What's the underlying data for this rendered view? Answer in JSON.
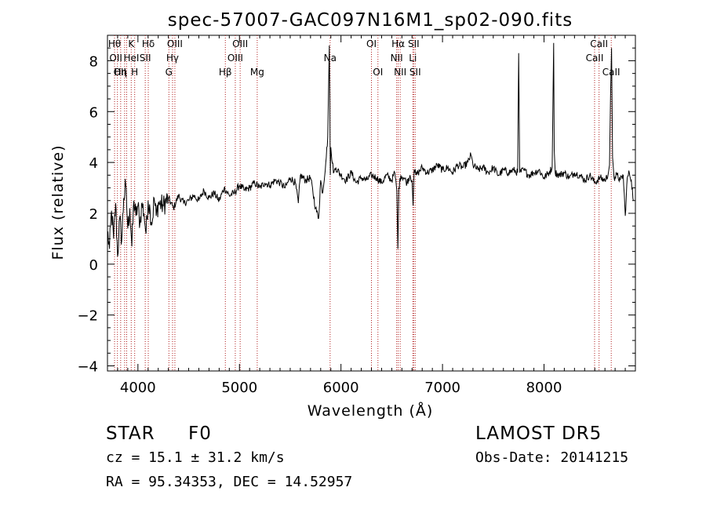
{
  "chart_data": {
    "type": "line",
    "title": "spec-57007-GAC097N16M1_sp02-090.fits",
    "xlabel": "Wavelength (Å)",
    "ylabel": "Flux (relative)",
    "xlim": [
      3700,
      8900
    ],
    "ylim": [
      -4.2,
      9.0
    ],
    "xticks": [
      4000,
      5000,
      6000,
      7000,
      8000
    ],
    "yticks": [
      -4,
      -2,
      0,
      2,
      4,
      6,
      8
    ],
    "grid": false,
    "series": [
      {
        "x": [
          3700,
          3720,
          3740,
          3760,
          3780,
          3800,
          3820,
          3840,
          3860,
          3880,
          3900,
          3920,
          3940,
          3960,
          3980,
          4000,
          4020,
          4040,
          4060,
          4080,
          4100,
          4120,
          4140,
          4160,
          4180,
          4200,
          4250,
          4300,
          4350,
          4400,
          4450,
          4500,
          4550,
          4600,
          4650,
          4700,
          4750,
          4800,
          4850,
          4900,
          4950,
          5000,
          5050,
          5100,
          5150,
          5200,
          5250,
          5300,
          5350,
          5400,
          5450,
          5500,
          5550,
          5580,
          5600,
          5650,
          5700,
          5750,
          5780,
          5800,
          5820,
          5850,
          5870,
          5885,
          5890,
          5895,
          5900,
          5910,
          5930,
          5950,
          6000,
          6050,
          6100,
          6150,
          6200,
          6250,
          6300,
          6350,
          6400,
          6450,
          6500,
          6530,
          6550,
          6560,
          6563,
          6570,
          6590,
          6620,
          6650,
          6680,
          6700,
          6710,
          6720,
          6740,
          6760,
          6800,
          6850,
          6900,
          6950,
          7000,
          7050,
          7100,
          7150,
          7200,
          7250,
          7280,
          7300,
          7350,
          7400,
          7450,
          7500,
          7550,
          7600,
          7650,
          7700,
          7740,
          7750,
          7760,
          7800,
          7850,
          7900,
          7950,
          8000,
          8050,
          8080,
          8095,
          8100,
          8110,
          8150,
          8200,
          8250,
          8300,
          8350,
          8400,
          8450,
          8500,
          8550,
          8600,
          8630,
          8645,
          8655,
          8665,
          8675,
          8690,
          8720,
          8750,
          8780,
          8800,
          8820,
          8840,
          8860,
          8880
        ],
        "y": [
          1.3,
          0.6,
          2.1,
          1.0,
          2.4,
          0.3,
          1.8,
          0.9,
          2.6,
          3.1,
          1.4,
          2.2,
          0.7,
          2.5,
          1.9,
          2.3,
          1.6,
          2.4,
          2.0,
          1.2,
          2.5,
          2.1,
          1.6,
          2.6,
          1.9,
          2.4,
          2.3,
          2.6,
          2.2,
          2.7,
          2.4,
          2.5,
          2.7,
          2.5,
          2.9,
          2.6,
          2.8,
          2.5,
          3.0,
          2.7,
          2.8,
          3.1,
          2.9,
          3.0,
          3.2,
          3.0,
          3.2,
          3.1,
          3.3,
          3.2,
          3.0,
          3.4,
          3.2,
          2.4,
          3.5,
          3.3,
          3.4,
          2.2,
          1.8,
          3.3,
          2.8,
          4.0,
          5.0,
          8.6,
          6.5,
          3.5,
          4.6,
          4.1,
          3.6,
          3.8,
          3.5,
          3.3,
          3.6,
          3.2,
          3.4,
          3.3,
          3.5,
          3.4,
          3.2,
          3.5,
          3.3,
          3.6,
          2.9,
          0.6,
          1.1,
          3.0,
          3.5,
          3.4,
          3.2,
          3.5,
          3.3,
          2.3,
          3.7,
          3.5,
          3.6,
          3.8,
          3.6,
          3.7,
          3.9,
          3.7,
          3.8,
          3.6,
          3.9,
          3.8,
          4.0,
          4.3,
          3.9,
          3.7,
          3.8,
          3.6,
          3.8,
          3.5,
          3.7,
          3.6,
          3.7,
          3.6,
          8.3,
          3.6,
          3.7,
          3.5,
          3.6,
          3.7,
          3.4,
          3.6,
          3.8,
          8.7,
          4.5,
          3.6,
          3.5,
          3.6,
          3.4,
          3.6,
          3.5,
          3.3,
          3.5,
          3.2,
          3.4,
          3.3,
          3.5,
          3.9,
          6.6,
          8.5,
          4.2,
          3.4,
          3.5,
          3.3,
          3.5,
          1.9,
          3.4,
          3.6,
          3.3,
          2.5
        ]
      }
    ],
    "lines": [
      {
        "x": 3770,
        "label": "Hθ",
        "row": 0,
        "shift": 0
      },
      {
        "x": 3798,
        "label": "OII",
        "row": 1,
        "shift": -2
      },
      {
        "x": 3830,
        "label": "Hη",
        "row": 2,
        "shift": 0
      },
      {
        "x": 3869,
        "label": "OII",
        "row": 2,
        "shift": -6
      },
      {
        "x": 3889,
        "label": "HeI",
        "row": 1,
        "shift": 6
      },
      {
        "x": 3934,
        "label": "K",
        "row": 0,
        "shift": 0
      },
      {
        "x": 3968,
        "label": "H",
        "row": 2,
        "shift": 0
      },
      {
        "x": 4072,
        "label": "SII",
        "row": 1,
        "shift": 0
      },
      {
        "x": 4102,
        "label": "Hδ",
        "row": 0,
        "shift": 0
      },
      {
        "x": 4305,
        "label": "G",
        "row": 2,
        "shift": 0
      },
      {
        "x": 4341,
        "label": "Hγ",
        "row": 1,
        "shift": 0
      },
      {
        "x": 4364,
        "label": "OIII",
        "row": 0,
        "shift": 0
      },
      {
        "x": 4861,
        "label": "Hβ",
        "row": 2,
        "shift": 0
      },
      {
        "x": 4959,
        "label": "OIII",
        "row": 1,
        "shift": 0
      },
      {
        "x": 5007,
        "label": "OIII",
        "row": 0,
        "shift": 0
      },
      {
        "x": 5175,
        "label": "Mg",
        "row": 2,
        "shift": 0
      },
      {
        "x": 5893,
        "label": "Na",
        "row": 1,
        "shift": 0
      },
      {
        "x": 6300,
        "label": "OI",
        "row": 0,
        "shift": 0
      },
      {
        "x": 6364,
        "label": "OI",
        "row": 2,
        "shift": 0
      },
      {
        "x": 6548,
        "label": "NII",
        "row": 1,
        "shift": 0
      },
      {
        "x": 6563,
        "label": "Hα",
        "row": 0,
        "shift": 0
      },
      {
        "x": 6583,
        "label": "NII",
        "row": 2,
        "shift": 0
      },
      {
        "x": 6708,
        "label": "Li",
        "row": 1,
        "shift": 0
      },
      {
        "x": 6716,
        "label": "SII",
        "row": 0,
        "shift": 0
      },
      {
        "x": 6731,
        "label": "SII",
        "row": 2,
        "shift": 0
      },
      {
        "x": 8498,
        "label": "CaII",
        "row": 1,
        "shift": 0
      },
      {
        "x": 8542,
        "label": "CaII",
        "row": 0,
        "shift": 0
      },
      {
        "x": 8662,
        "label": "CaII",
        "row": 2,
        "shift": 0
      }
    ]
  },
  "footer": {
    "object_type": "STAR",
    "subclass": "F0",
    "survey": "LAMOST DR5",
    "redshift": "cz = 15.1 ± 31.2 km/s",
    "obs_date": "Obs-Date: 20141215",
    "coords": "RA =  95.34353, DEC =  14.52957"
  }
}
